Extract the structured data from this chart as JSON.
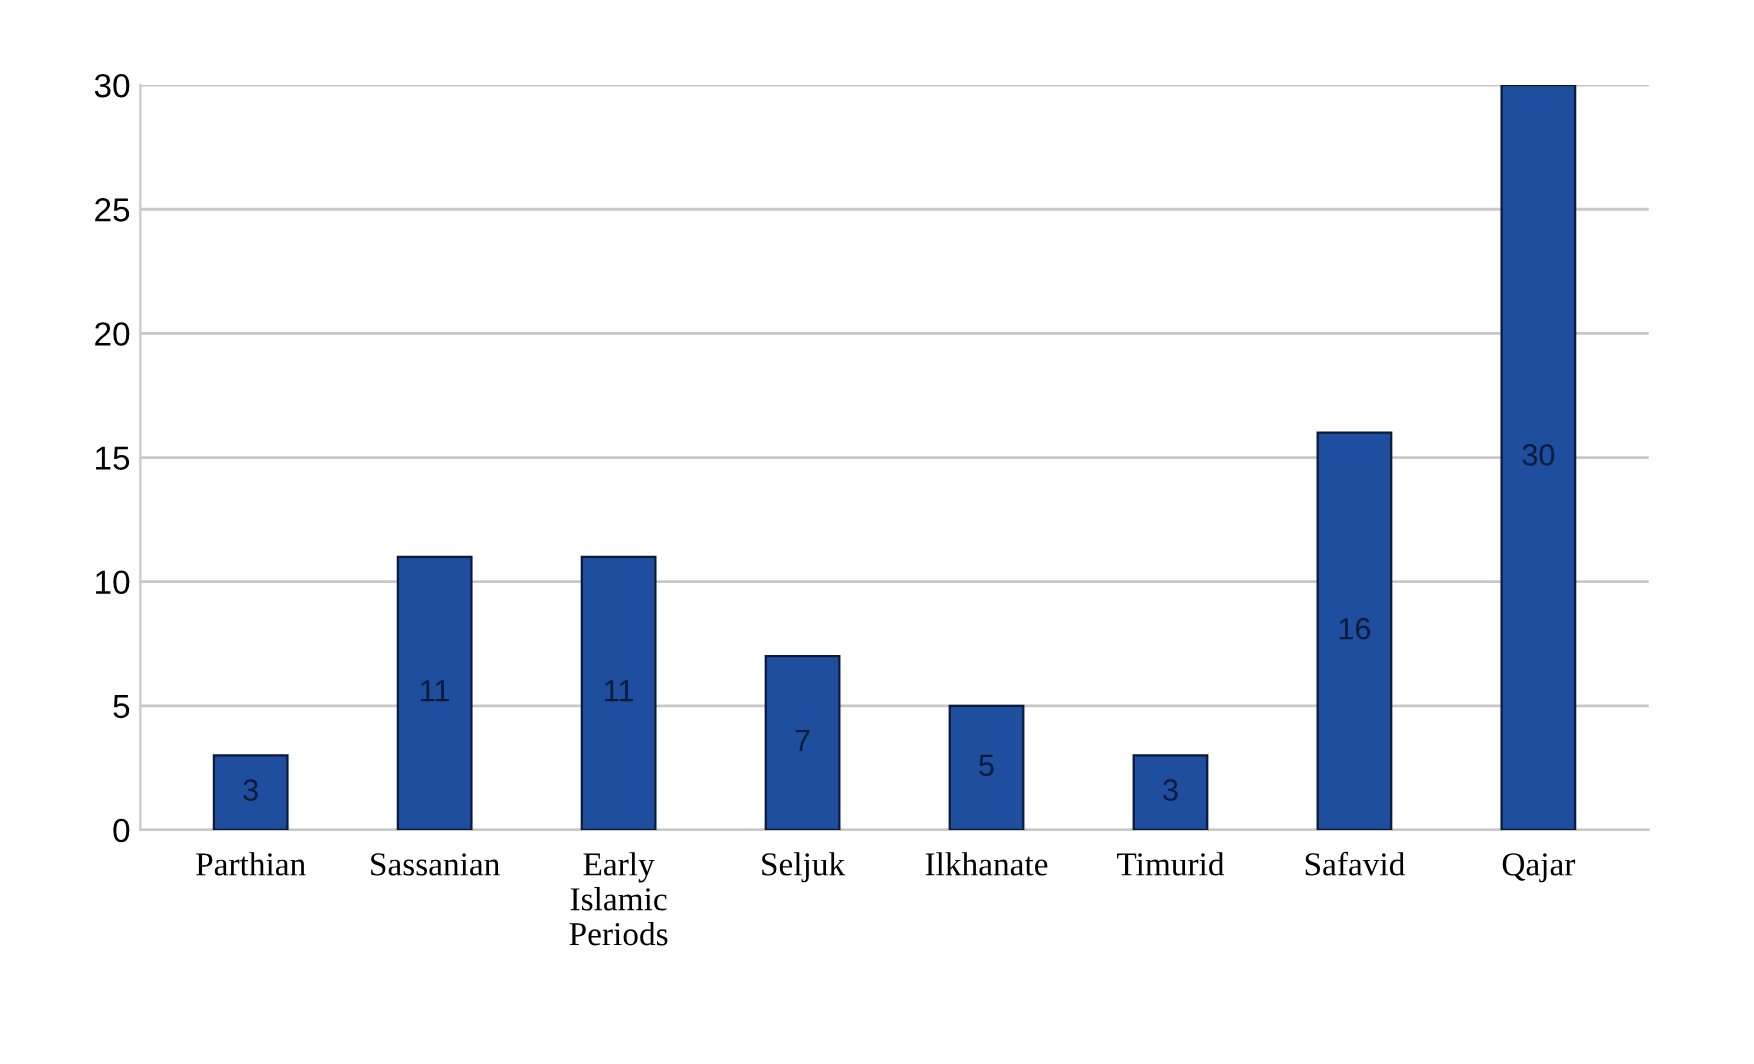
{
  "chart_data": {
    "type": "bar",
    "categories": [
      "Parthian",
      "Sassanian",
      "Early Islamic Periods",
      "Seljuk",
      "Ilkhanate",
      "Timurid",
      "Safavid",
      "Qajar"
    ],
    "values": [
      3,
      11,
      11,
      7,
      5,
      3,
      16,
      30
    ],
    "color": "#1f4e9e",
    "ylim": [
      0,
      30
    ],
    "yticks": [
      0,
      5,
      10,
      15,
      20,
      25,
      30
    ],
    "grid": "y",
    "data_labels": true
  }
}
